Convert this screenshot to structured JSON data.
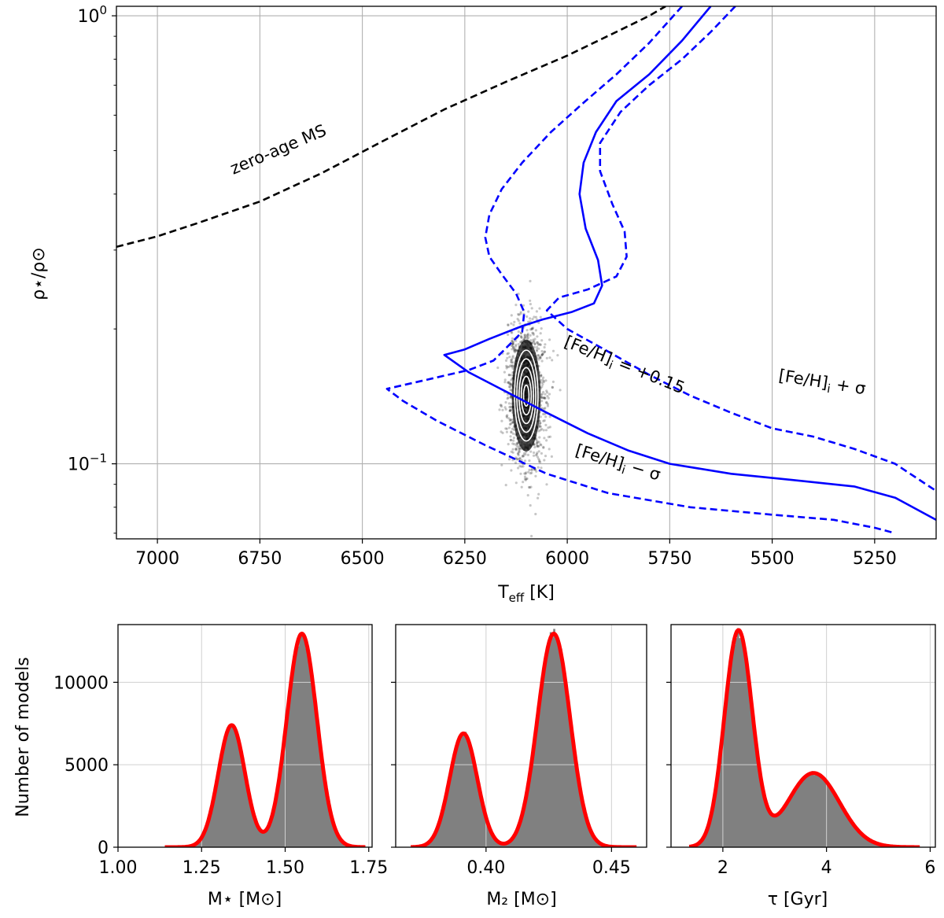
{
  "chart_data": [
    {
      "type": "line",
      "role": "main",
      "xlabel": "T",
      "xlabel_sub": "eff",
      "xlabel_unit": " [K]",
      "ylabel": "ρ⋆/ρ⊙",
      "x_inverted": true,
      "xlim": [
        7100,
        5100
      ],
      "ylim": [
        0.068,
        1.05
      ],
      "yscale": "log",
      "x_ticks": [
        7000,
        6750,
        6500,
        6250,
        6000,
        5750,
        5500,
        5250
      ],
      "y_tick_labels": [
        {
          "value": 1.0,
          "base": "10",
          "exp": "0"
        },
        {
          "value": 0.1,
          "base": "10",
          "exp": "−1"
        }
      ],
      "series": [
        {
          "name": "zero-age MS",
          "style": "dashed",
          "color": "#000000",
          "points": [
            [
              7100,
              0.305
            ],
            [
              7000,
              0.322
            ],
            [
              6900,
              0.345
            ],
            [
              6750,
              0.385
            ],
            [
              6600,
              0.445
            ],
            [
              6450,
              0.525
            ],
            [
              6300,
              0.618
            ],
            [
              6150,
              0.712
            ],
            [
              6000,
              0.815
            ],
            [
              5870,
              0.93
            ],
            [
              5800,
              1.0
            ],
            [
              5760,
              1.05
            ]
          ]
        },
        {
          "name": "[Fe/H]i = +0.15",
          "style": "solid",
          "color": "#0000ff",
          "points": [
            [
              5650,
              1.05
            ],
            [
              5720,
              0.88
            ],
            [
              5800,
              0.74
            ],
            [
              5880,
              0.645
            ],
            [
              5930,
              0.55
            ],
            [
              5960,
              0.47
            ],
            [
              5970,
              0.4
            ],
            [
              5955,
              0.335
            ],
            [
              5925,
              0.285
            ],
            [
              5915,
              0.25
            ],
            [
              5935,
              0.228
            ],
            [
              5990,
              0.218
            ],
            [
              6060,
              0.21
            ],
            [
              6110,
              0.203
            ],
            [
              6190,
              0.19
            ],
            [
              6250,
              0.18
            ],
            [
              6300,
              0.175
            ],
            [
              6240,
              0.16
            ],
            [
              6150,
              0.145
            ],
            [
              6050,
              0.13
            ],
            [
              5950,
              0.117
            ],
            [
              5850,
              0.107
            ],
            [
              5750,
              0.1
            ],
            [
              5600,
              0.095
            ],
            [
              5450,
              0.092
            ],
            [
              5300,
              0.089
            ],
            [
              5200,
              0.084
            ],
            [
              5100,
              0.075
            ]
          ]
        },
        {
          "name": "[Fe/H]i + σ",
          "style": "dashed",
          "color": "#0000ff",
          "points": [
            [
              5590,
              1.05
            ],
            [
              5650,
              0.92
            ],
            [
              5720,
              0.8
            ],
            [
              5800,
              0.7
            ],
            [
              5870,
              0.61
            ],
            [
              5920,
              0.52
            ],
            [
              5920,
              0.45
            ],
            [
              5890,
              0.38
            ],
            [
              5860,
              0.33
            ],
            [
              5855,
              0.29
            ],
            [
              5880,
              0.262
            ],
            [
              5950,
              0.245
            ],
            [
              6020,
              0.235
            ],
            [
              6050,
              0.22
            ],
            [
              6000,
              0.2
            ],
            [
              5900,
              0.178
            ],
            [
              5800,
              0.158
            ],
            [
              5700,
              0.142
            ],
            [
              5600,
              0.13
            ],
            [
              5500,
              0.12
            ],
            [
              5400,
              0.115
            ],
            [
              5300,
              0.108
            ],
            [
              5200,
              0.1
            ],
            [
              5100,
              0.087
            ]
          ]
        },
        {
          "name": "[Fe/H]i − σ",
          "style": "dashed",
          "color": "#0000ff",
          "points": [
            [
              5720,
              1.05
            ],
            [
              5800,
              0.87
            ],
            [
              5880,
              0.74
            ],
            [
              5960,
              0.64
            ],
            [
              6040,
              0.55
            ],
            [
              6110,
              0.47
            ],
            [
              6160,
              0.41
            ],
            [
              6190,
              0.36
            ],
            [
              6200,
              0.32
            ],
            [
              6190,
              0.29
            ],
            [
              6160,
              0.265
            ],
            [
              6125,
              0.24
            ],
            [
              6105,
              0.218
            ],
            [
              6110,
              0.197
            ],
            [
              6150,
              0.181
            ],
            [
              6180,
              0.17
            ],
            [
              6240,
              0.162
            ],
            [
              6330,
              0.155
            ],
            [
              6440,
              0.147
            ],
            [
              6400,
              0.138
            ],
            [
              6320,
              0.125
            ],
            [
              6200,
              0.11
            ],
            [
              6050,
              0.095
            ],
            [
              5900,
              0.086
            ],
            [
              5700,
              0.08
            ],
            [
              5500,
              0.077
            ],
            [
              5350,
              0.075
            ],
            [
              5250,
              0.072
            ],
            [
              5200,
              0.07
            ]
          ]
        }
      ],
      "posterior_cloud": {
        "teff_center": 6100,
        "teff_sigma": 22,
        "rho_center": 0.142,
        "rho_log_sigma": 0.078,
        "color": "#000000"
      },
      "annotations": [
        {
          "text": "zero-age MS",
          "teff": 6700,
          "rho": 0.49,
          "angle": -23
        },
        {
          "text": "[Fe/H]",
          "sub": "i",
          "tail": " = +0.15",
          "teff": 5865,
          "rho": 0.162,
          "angle": 22
        },
        {
          "text": "[Fe/H]",
          "sub": "i",
          "tail": " + σ",
          "teff": 5380,
          "rho": 0.148,
          "angle": 9
        },
        {
          "text": "[Fe/H]",
          "sub": "i",
          "tail": " − σ",
          "teff": 5880,
          "rho": 0.098,
          "angle": 17
        }
      ]
    },
    {
      "type": "histogram",
      "role": "hist-mass",
      "xlabel": "M⋆ [M⊙]",
      "ylabel": "Number of models",
      "xlim": [
        1.0,
        1.76
      ],
      "ylim": [
        0,
        13500
      ],
      "x_ticks": [
        "1.00",
        "1.25",
        "1.50",
        "1.75"
      ],
      "y_ticks": [
        "0",
        "5000",
        "10000"
      ],
      "fit_components": [
        {
          "amplitude": 7400,
          "mean": 1.34,
          "sigma": 0.04
        },
        {
          "amplitude": 12950,
          "mean": 1.55,
          "sigma": 0.045
        }
      ],
      "fit_range": [
        1.14,
        1.74
      ],
      "fit_color": "#ff0000",
      "bar_color": "#808080"
    },
    {
      "type": "histogram",
      "role": "hist-m2",
      "xlabel": "M₂ [M⊙]",
      "xlim": [
        0.364,
        0.464
      ],
      "ylim": [
        0,
        13500
      ],
      "x_ticks": [
        "0.40",
        "0.45"
      ],
      "fit_components": [
        {
          "amplitude": 6900,
          "mean": 0.391,
          "sigma": 0.0055
        },
        {
          "amplitude": 12950,
          "mean": 0.427,
          "sigma": 0.0065
        }
      ],
      "fit_range": [
        0.37,
        0.46
      ],
      "fit_color": "#ff0000",
      "bar_color": "#808080"
    },
    {
      "type": "histogram",
      "role": "hist-age",
      "xlabel": "τ [Gyr]",
      "xlim": [
        1.0,
        6.1
      ],
      "ylim": [
        0,
        13500
      ],
      "x_ticks": [
        "2",
        "4",
        "6"
      ],
      "fit_components": [
        {
          "amplitude": 13100,
          "mean": 2.3,
          "sigma": 0.27
        },
        {
          "amplitude": 4500,
          "mean": 3.75,
          "sigma": 0.5
        }
      ],
      "fit_range": [
        1.35,
        5.8
      ],
      "fit_color": "#ff0000",
      "bar_color": "#808080"
    }
  ]
}
